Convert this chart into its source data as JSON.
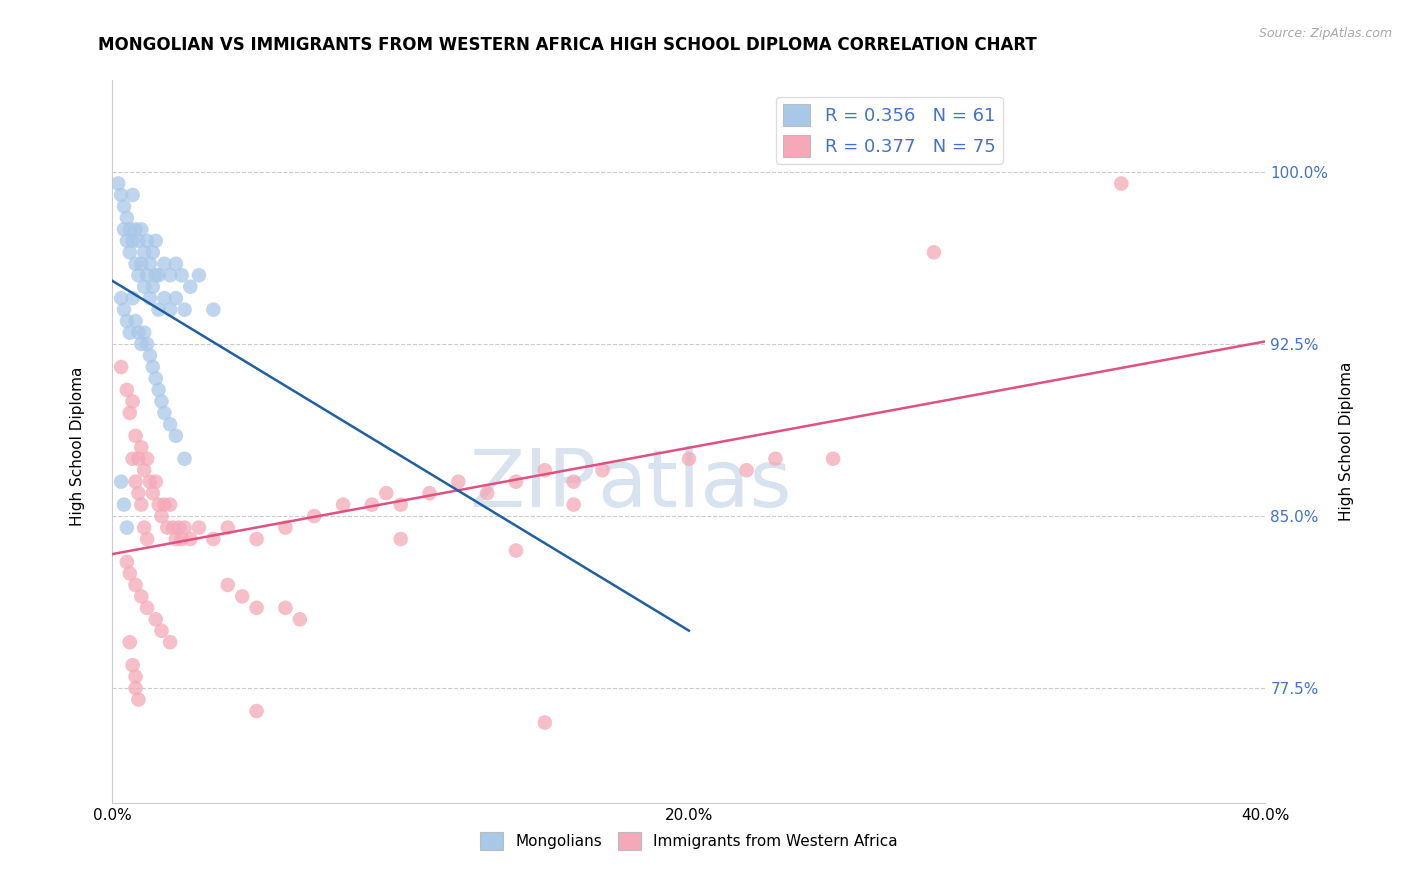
{
  "title": "MONGOLIAN VS IMMIGRANTS FROM WESTERN AFRICA HIGH SCHOOL DIPLOMA CORRELATION CHART",
  "source_text": "Source: ZipAtlas.com",
  "ylabel": "High School Diploma",
  "xlim": [
    0.0,
    0.4
  ],
  "ylim": [
    0.725,
    1.04
  ],
  "xticks": [
    0.0,
    0.1,
    0.2,
    0.3,
    0.4
  ],
  "xtick_labels": [
    "0.0%",
    "",
    "20.0%",
    "",
    "40.0%"
  ],
  "yticks": [
    0.775,
    0.85,
    0.925,
    1.0
  ],
  "ytick_labels": [
    "77.5%",
    "85.0%",
    "92.5%",
    "100.0%"
  ],
  "blue_color": "#a8c8e8",
  "pink_color": "#f4a8b8",
  "blue_line_color": "#2060a0",
  "pink_line_color": "#e05080",
  "R_blue": 0.356,
  "N_blue": 61,
  "R_pink": 0.377,
  "N_pink": 75,
  "watermark_ZIP": "ZIP",
  "watermark_atlas": "atlas",
  "legend_label_blue": "Mongolians",
  "legend_label_pink": "Immigrants from Western Africa",
  "title_fontsize": 12,
  "axis_label_fontsize": 11,
  "tick_fontsize": 11,
  "blue_scatter": [
    [
      0.002,
      0.995
    ],
    [
      0.003,
      0.99
    ],
    [
      0.004,
      0.985
    ],
    [
      0.004,
      0.975
    ],
    [
      0.005,
      0.98
    ],
    [
      0.005,
      0.97
    ],
    [
      0.006,
      0.975
    ],
    [
      0.006,
      0.965
    ],
    [
      0.007,
      0.99
    ],
    [
      0.007,
      0.97
    ],
    [
      0.008,
      0.975
    ],
    [
      0.008,
      0.96
    ],
    [
      0.009,
      0.97
    ],
    [
      0.009,
      0.955
    ],
    [
      0.01,
      0.975
    ],
    [
      0.01,
      0.96
    ],
    [
      0.011,
      0.965
    ],
    [
      0.011,
      0.95
    ],
    [
      0.012,
      0.97
    ],
    [
      0.012,
      0.955
    ],
    [
      0.013,
      0.96
    ],
    [
      0.013,
      0.945
    ],
    [
      0.014,
      0.965
    ],
    [
      0.014,
      0.95
    ],
    [
      0.015,
      0.97
    ],
    [
      0.015,
      0.955
    ],
    [
      0.016,
      0.955
    ],
    [
      0.016,
      0.94
    ],
    [
      0.018,
      0.96
    ],
    [
      0.018,
      0.945
    ],
    [
      0.02,
      0.955
    ],
    [
      0.02,
      0.94
    ],
    [
      0.022,
      0.96
    ],
    [
      0.022,
      0.945
    ],
    [
      0.024,
      0.955
    ],
    [
      0.025,
      0.94
    ],
    [
      0.027,
      0.95
    ],
    [
      0.03,
      0.955
    ],
    [
      0.035,
      0.94
    ],
    [
      0.003,
      0.945
    ],
    [
      0.004,
      0.94
    ],
    [
      0.005,
      0.935
    ],
    [
      0.006,
      0.93
    ],
    [
      0.007,
      0.945
    ],
    [
      0.008,
      0.935
    ],
    [
      0.009,
      0.93
    ],
    [
      0.01,
      0.925
    ],
    [
      0.011,
      0.93
    ],
    [
      0.012,
      0.925
    ],
    [
      0.013,
      0.92
    ],
    [
      0.014,
      0.915
    ],
    [
      0.015,
      0.91
    ],
    [
      0.016,
      0.905
    ],
    [
      0.017,
      0.9
    ],
    [
      0.018,
      0.895
    ],
    [
      0.02,
      0.89
    ],
    [
      0.022,
      0.885
    ],
    [
      0.025,
      0.875
    ],
    [
      0.003,
      0.865
    ],
    [
      0.004,
      0.855
    ],
    [
      0.005,
      0.845
    ]
  ],
  "pink_scatter": [
    [
      0.003,
      0.915
    ],
    [
      0.005,
      0.905
    ],
    [
      0.006,
      0.895
    ],
    [
      0.007,
      0.9
    ],
    [
      0.008,
      0.885
    ],
    [
      0.009,
      0.875
    ],
    [
      0.01,
      0.88
    ],
    [
      0.011,
      0.87
    ],
    [
      0.012,
      0.875
    ],
    [
      0.013,
      0.865
    ],
    [
      0.014,
      0.86
    ],
    [
      0.015,
      0.865
    ],
    [
      0.016,
      0.855
    ],
    [
      0.017,
      0.85
    ],
    [
      0.018,
      0.855
    ],
    [
      0.019,
      0.845
    ],
    [
      0.02,
      0.855
    ],
    [
      0.021,
      0.845
    ],
    [
      0.022,
      0.84
    ],
    [
      0.023,
      0.845
    ],
    [
      0.024,
      0.84
    ],
    [
      0.025,
      0.845
    ],
    [
      0.027,
      0.84
    ],
    [
      0.03,
      0.845
    ],
    [
      0.035,
      0.84
    ],
    [
      0.04,
      0.845
    ],
    [
      0.05,
      0.84
    ],
    [
      0.06,
      0.845
    ],
    [
      0.07,
      0.85
    ],
    [
      0.08,
      0.855
    ],
    [
      0.09,
      0.855
    ],
    [
      0.1,
      0.855
    ],
    [
      0.11,
      0.86
    ],
    [
      0.12,
      0.865
    ],
    [
      0.13,
      0.86
    ],
    [
      0.14,
      0.865
    ],
    [
      0.15,
      0.87
    ],
    [
      0.16,
      0.865
    ],
    [
      0.17,
      0.87
    ],
    [
      0.2,
      0.875
    ],
    [
      0.22,
      0.87
    ],
    [
      0.25,
      0.875
    ],
    [
      0.007,
      0.875
    ],
    [
      0.008,
      0.865
    ],
    [
      0.009,
      0.86
    ],
    [
      0.01,
      0.855
    ],
    [
      0.011,
      0.845
    ],
    [
      0.012,
      0.84
    ],
    [
      0.005,
      0.83
    ],
    [
      0.006,
      0.825
    ],
    [
      0.008,
      0.82
    ],
    [
      0.01,
      0.815
    ],
    [
      0.012,
      0.81
    ],
    [
      0.015,
      0.805
    ],
    [
      0.017,
      0.8
    ],
    [
      0.02,
      0.795
    ],
    [
      0.04,
      0.82
    ],
    [
      0.045,
      0.815
    ],
    [
      0.05,
      0.81
    ],
    [
      0.06,
      0.81
    ],
    [
      0.065,
      0.805
    ],
    [
      0.006,
      0.795
    ],
    [
      0.007,
      0.785
    ],
    [
      0.008,
      0.78
    ],
    [
      0.008,
      0.775
    ],
    [
      0.009,
      0.77
    ],
    [
      0.05,
      0.765
    ],
    [
      0.15,
      0.76
    ],
    [
      0.35,
      0.995
    ],
    [
      0.285,
      0.965
    ],
    [
      0.23,
      0.875
    ],
    [
      0.16,
      0.855
    ],
    [
      0.14,
      0.835
    ],
    [
      0.095,
      0.86
    ],
    [
      0.1,
      0.84
    ]
  ]
}
